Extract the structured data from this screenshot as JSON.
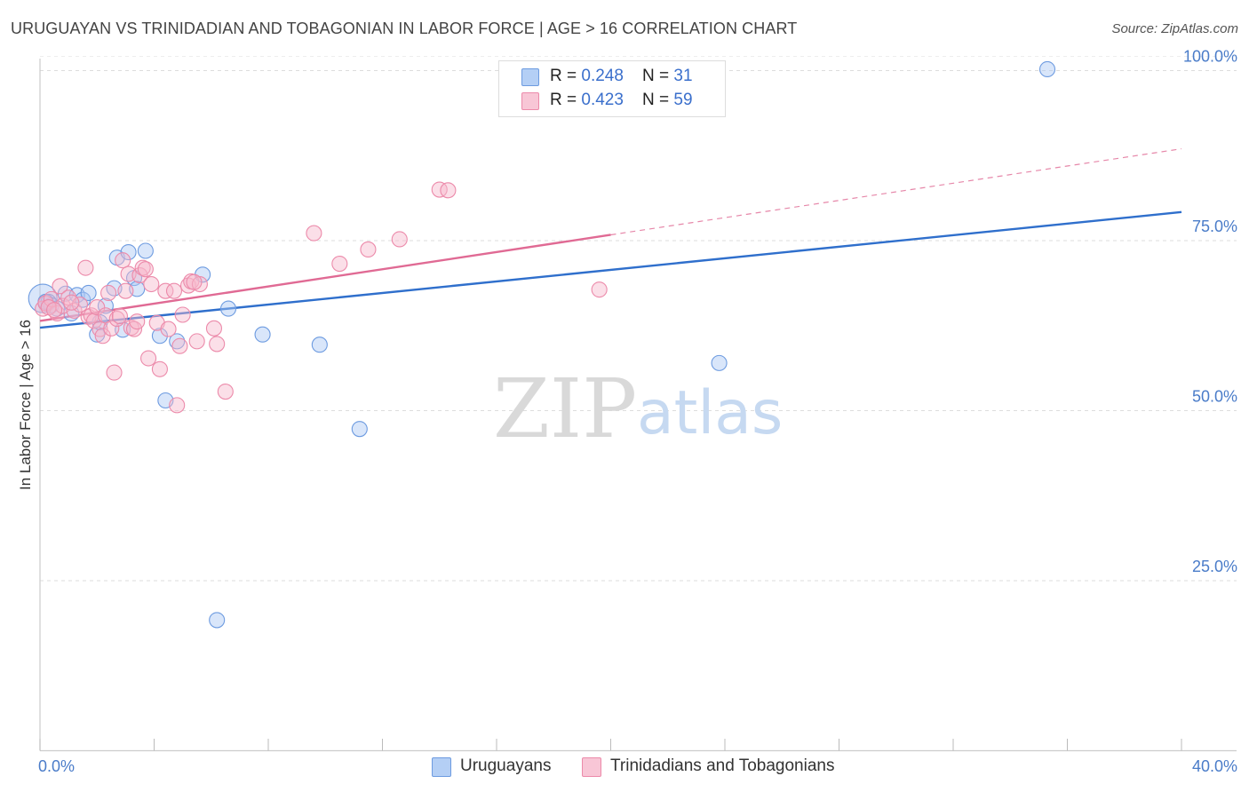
{
  "header": {
    "title": "URUGUAYAN VS TRINIDADIAN AND TOBAGONIAN IN LABOR FORCE | AGE > 16 CORRELATION CHART",
    "source": "Source: ZipAtlas.com"
  },
  "legend": {
    "series1": {
      "r_label": "R = ",
      "r_value": "0.248",
      "n_label": "N = ",
      "n_value": "31"
    },
    "series2": {
      "r_label": "R = ",
      "r_value": "0.423",
      "n_label": "N = ",
      "n_value": "59"
    }
  },
  "bottom_legend": {
    "series1": "Uruguayans",
    "series2": "Trinidadians and Tobagonians"
  },
  "watermark": {
    "zip": "ZIP",
    "atlas": "atlas"
  },
  "colors": {
    "blue_fill": "#aac8f5",
    "blue_stroke": "#6d9be0",
    "blue_line": "#2f6fcc",
    "pink_fill": "#f6b9cc",
    "pink_stroke": "#ec8aaa",
    "pink_line": "#e06a94"
  },
  "chart_data": {
    "type": "scatter",
    "title": "URUGUAYAN VS TRINIDADIAN AND TOBAGONIAN IN LABOR FORCE | AGE > 16 CORRELATION CHART",
    "xlabel": "",
    "ylabel": "In Labor Force | Age > 16",
    "xlim": [
      0,
      40
    ],
    "ylim": [
      0,
      102
    ],
    "x_tick_labels": [
      {
        "value": 0,
        "label": "0.0%"
      },
      {
        "value": 40,
        "label": "40.0%"
      }
    ],
    "y_tick_labels": [
      {
        "value": 25,
        "label": "25.0%"
      },
      {
        "value": 50,
        "label": "50.0%"
      },
      {
        "value": 75,
        "label": "75.0%"
      },
      {
        "value": 100,
        "label": "100.0%"
      }
    ],
    "grid": true,
    "series": [
      {
        "name": "Uruguayans",
        "color": "#6d9be0",
        "R": 0.248,
        "N": 31,
        "trend": {
          "x": [
            0,
            40
          ],
          "y": [
            62.2,
            79.2
          ],
          "dashed_from": null
        },
        "points": [
          [
            0.1,
            66.5
          ],
          [
            0.3,
            66.0
          ],
          [
            0.4,
            65.5
          ],
          [
            0.6,
            65.0
          ],
          [
            0.9,
            67.2
          ],
          [
            1.1,
            64.3
          ],
          [
            1.3,
            67.0
          ],
          [
            1.5,
            66.3
          ],
          [
            1.7,
            67.3
          ],
          [
            2.0,
            61.2
          ],
          [
            2.1,
            63.0
          ],
          [
            2.3,
            65.4
          ],
          [
            2.6,
            68.0
          ],
          [
            2.7,
            72.5
          ],
          [
            2.9,
            61.9
          ],
          [
            3.1,
            73.3
          ],
          [
            3.3,
            69.5
          ],
          [
            3.4,
            67.9
          ],
          [
            3.7,
            73.5
          ],
          [
            4.2,
            61.0
          ],
          [
            4.4,
            51.5
          ],
          [
            4.8,
            60.2
          ],
          [
            5.7,
            70.0
          ],
          [
            6.6,
            65.0
          ],
          [
            7.8,
            61.2
          ],
          [
            9.8,
            59.7
          ],
          [
            11.2,
            47.3
          ],
          [
            23.8,
            57.0
          ],
          [
            6.2,
            19.2
          ],
          [
            35.3,
            100.2
          ],
          [
            0.2,
            66.0
          ]
        ]
      },
      {
        "name": "Trinidadians and Tobagonians",
        "color": "#ec8aaa",
        "R": 0.423,
        "N": 59,
        "trend": {
          "x": [
            0,
            40
          ],
          "y": [
            63.2,
            88.5
          ],
          "dashed_from": 20
        },
        "points": [
          [
            0.1,
            65.0
          ],
          [
            0.2,
            65.8
          ],
          [
            0.4,
            66.4
          ],
          [
            0.6,
            64.3
          ],
          [
            0.7,
            68.3
          ],
          [
            0.8,
            65.4
          ],
          [
            1.0,
            66.6
          ],
          [
            1.2,
            64.7
          ],
          [
            1.4,
            65.6
          ],
          [
            1.6,
            71.0
          ],
          [
            1.7,
            63.8
          ],
          [
            1.8,
            64.0
          ],
          [
            1.9,
            63.2
          ],
          [
            2.0,
            65.2
          ],
          [
            2.1,
            62.0
          ],
          [
            2.2,
            61.0
          ],
          [
            2.3,
            64.0
          ],
          [
            2.4,
            67.3
          ],
          [
            2.5,
            62.1
          ],
          [
            2.6,
            55.6
          ],
          [
            2.7,
            63.5
          ],
          [
            2.9,
            72.1
          ],
          [
            3.0,
            67.6
          ],
          [
            3.1,
            70.1
          ],
          [
            3.2,
            62.2
          ],
          [
            3.3,
            62.0
          ],
          [
            3.4,
            63.1
          ],
          [
            3.5,
            69.9
          ],
          [
            3.6,
            71.0
          ],
          [
            3.8,
            57.7
          ],
          [
            3.9,
            68.6
          ],
          [
            4.1,
            62.9
          ],
          [
            4.2,
            56.1
          ],
          [
            4.4,
            67.6
          ],
          [
            4.5,
            62.0
          ],
          [
            4.7,
            67.6
          ],
          [
            4.8,
            50.8
          ],
          [
            4.9,
            59.5
          ],
          [
            5.0,
            64.1
          ],
          [
            5.2,
            68.4
          ],
          [
            5.3,
            69.0
          ],
          [
            5.5,
            60.2
          ],
          [
            5.6,
            68.6
          ],
          [
            6.1,
            62.1
          ],
          [
            6.2,
            59.8
          ],
          [
            6.5,
            52.8
          ],
          [
            9.6,
            76.1
          ],
          [
            10.5,
            71.6
          ],
          [
            11.5,
            73.7
          ],
          [
            12.6,
            75.2
          ],
          [
            14.0,
            82.5
          ],
          [
            14.3,
            82.4
          ],
          [
            19.6,
            67.8
          ],
          [
            0.3,
            65.2
          ],
          [
            0.5,
            64.8
          ],
          [
            1.1,
            65.9
          ],
          [
            2.8,
            63.9
          ],
          [
            3.7,
            70.8
          ],
          [
            5.4,
            68.9
          ]
        ]
      }
    ]
  }
}
